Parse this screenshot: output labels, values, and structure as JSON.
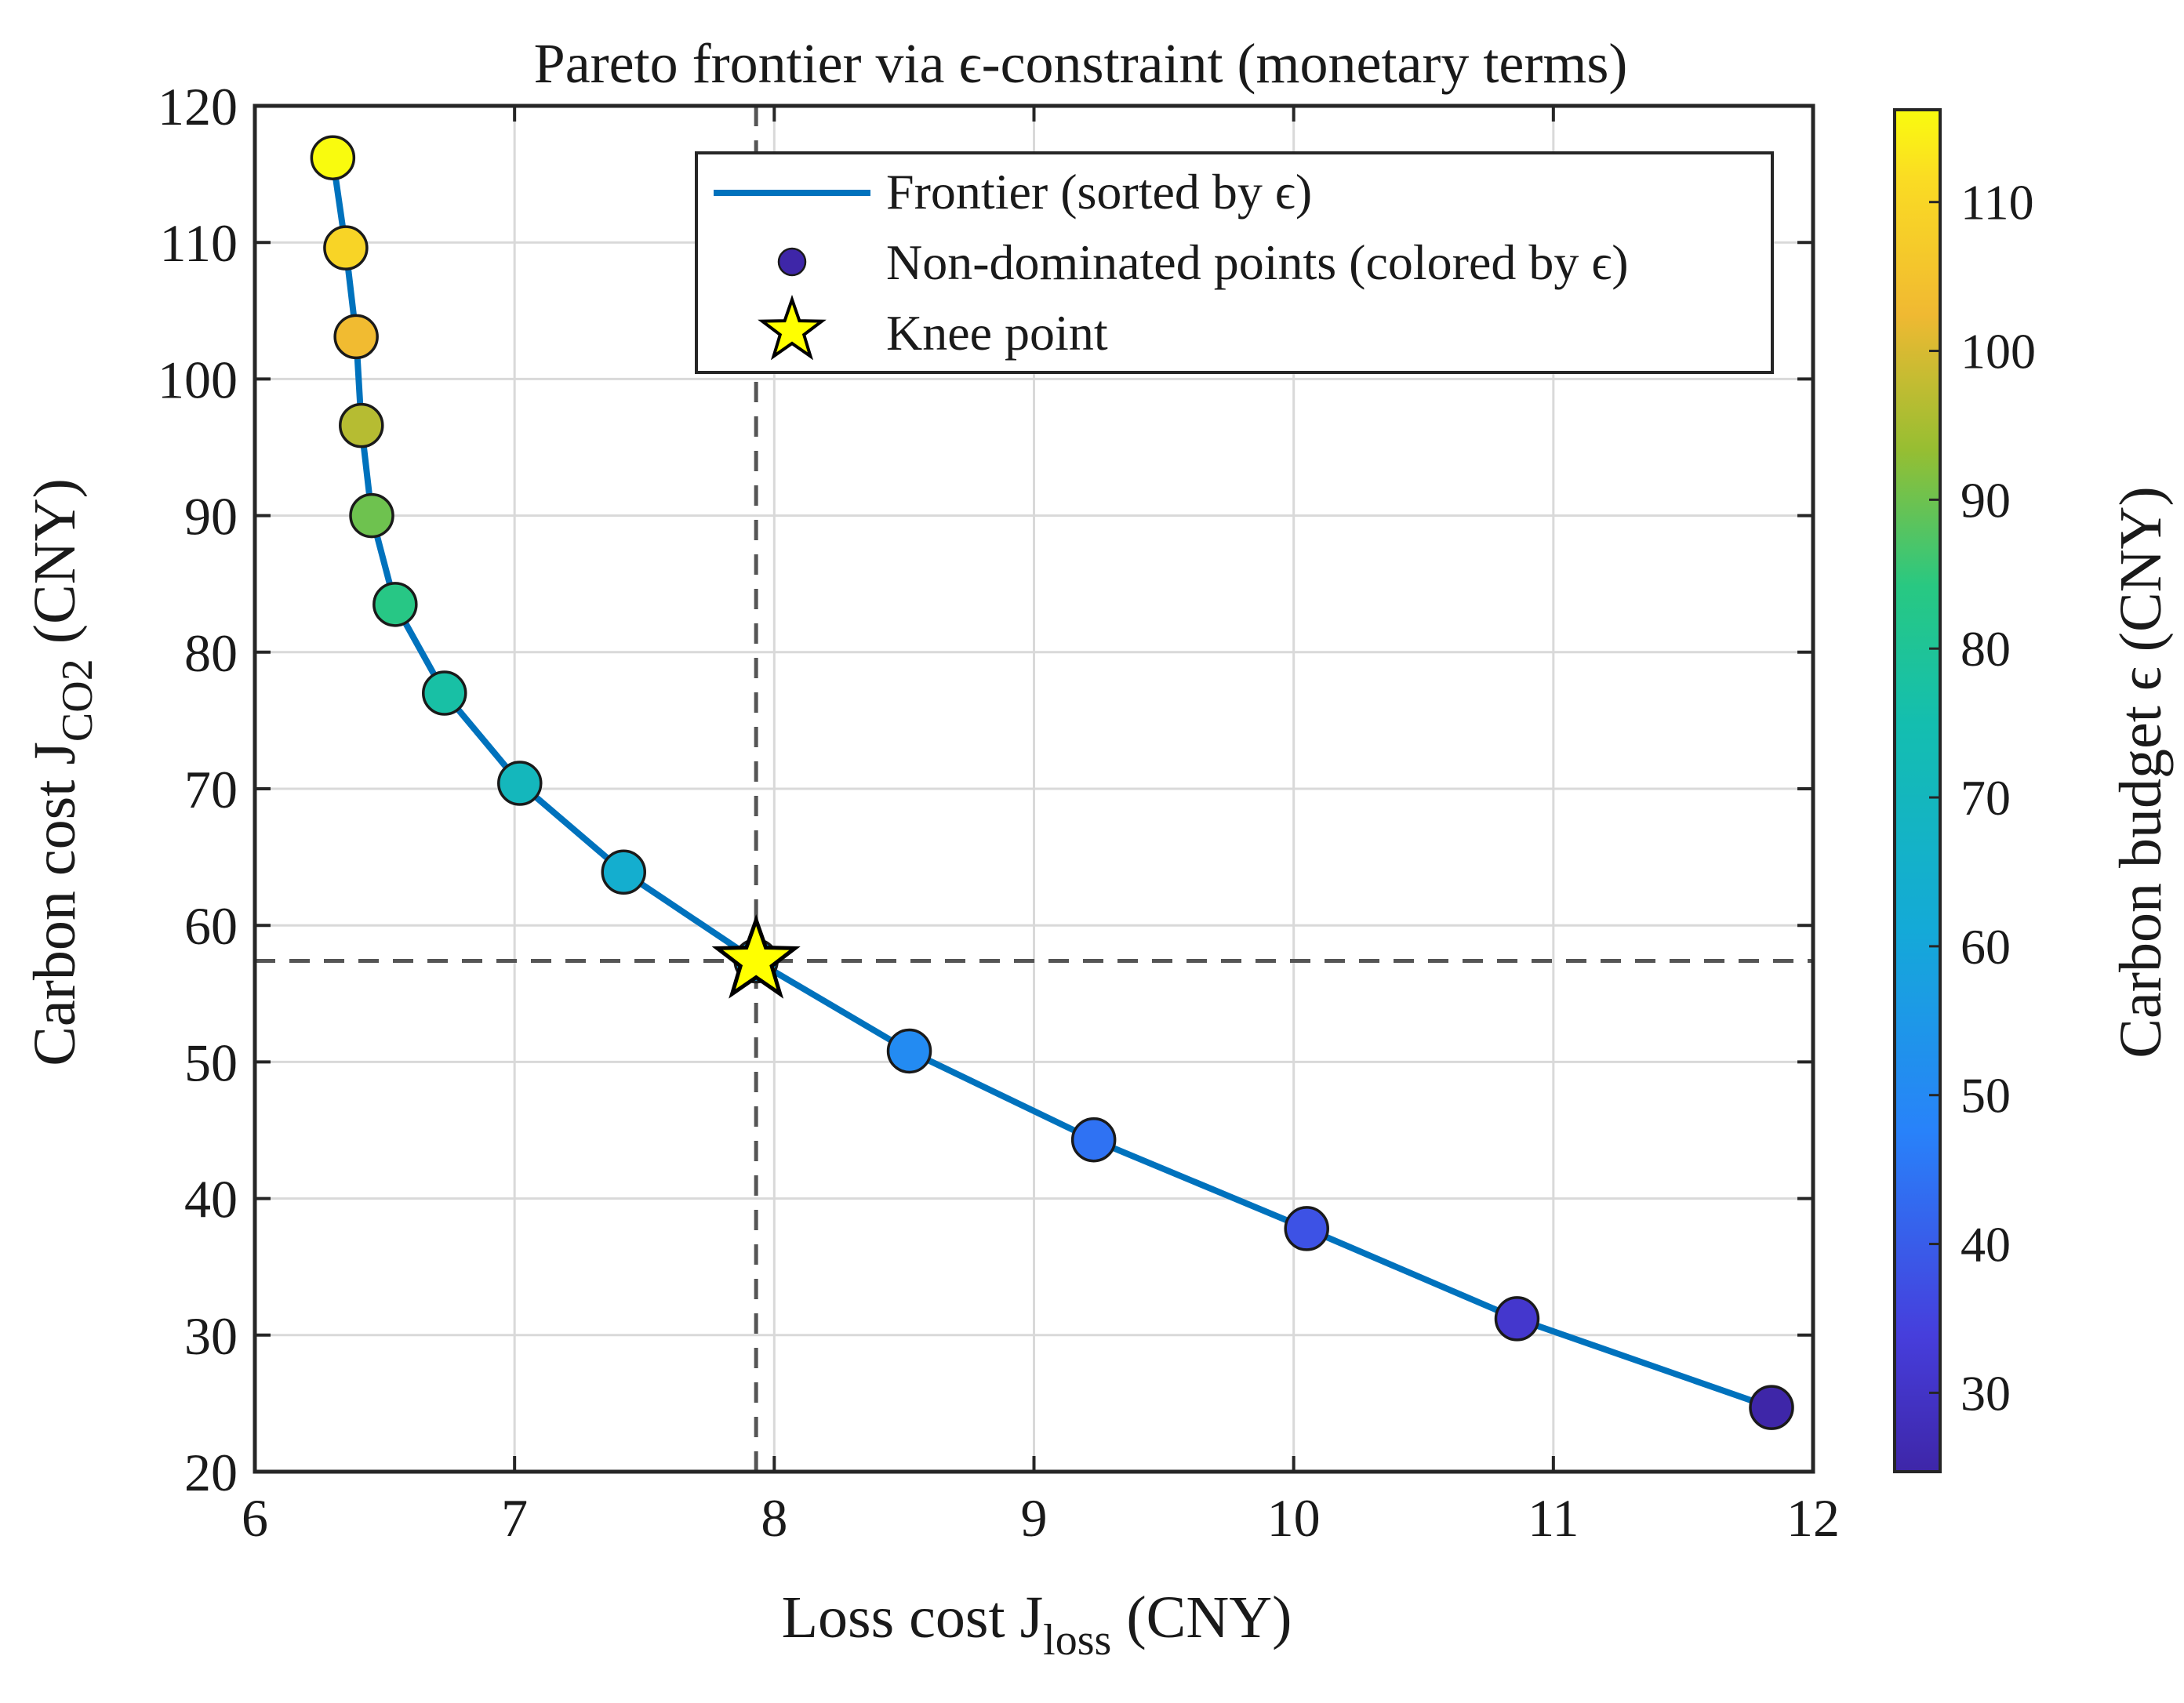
{
  "chart_data": {
    "type": "scatter",
    "title": "Pareto frontier via ϵ-constraint (monetary terms)",
    "xlabel": {
      "main": "Loss cost J",
      "sub": "loss",
      "unit": " (CNY)"
    },
    "ylabel": {
      "main": "Carbon cost J",
      "sub": "CO2",
      "unit": " (CNY)"
    },
    "xlim": [
      6,
      12
    ],
    "ylim": [
      20,
      120
    ],
    "xticks": [
      6,
      7,
      8,
      9,
      10,
      11,
      12
    ],
    "yticks": [
      20,
      30,
      40,
      50,
      60,
      70,
      80,
      90,
      100,
      110,
      120
    ],
    "grid": true,
    "series": [
      {
        "name": "Frontier (sorted by ϵ)",
        "kind": "line",
        "color": "#0072BD"
      },
      {
        "name": "Non-dominated points (colored by ϵ)",
        "kind": "scatter",
        "points": [
          {
            "x": 6.3,
            "y": 116.2,
            "epsilon": 116.2
          },
          {
            "x": 6.35,
            "y": 109.6,
            "epsilon": 109.6
          },
          {
            "x": 6.39,
            "y": 103.1,
            "epsilon": 103.1
          },
          {
            "x": 6.41,
            "y": 96.6,
            "epsilon": 96.6
          },
          {
            "x": 6.45,
            "y": 90.0,
            "epsilon": 90.0
          },
          {
            "x": 6.54,
            "y": 83.5,
            "epsilon": 83.5
          },
          {
            "x": 6.73,
            "y": 77.0,
            "epsilon": 77.0
          },
          {
            "x": 7.02,
            "y": 70.4,
            "epsilon": 70.4
          },
          {
            "x": 7.42,
            "y": 63.9,
            "epsilon": 63.9
          },
          {
            "x": 7.93,
            "y": 57.4,
            "epsilon": 57.4
          },
          {
            "x": 8.52,
            "y": 50.8,
            "epsilon": 50.8
          },
          {
            "x": 9.23,
            "y": 44.3,
            "epsilon": 44.3
          },
          {
            "x": 10.05,
            "y": 37.8,
            "epsilon": 37.8
          },
          {
            "x": 10.86,
            "y": 31.2,
            "epsilon": 31.2
          },
          {
            "x": 11.84,
            "y": 24.7,
            "epsilon": 24.7
          }
        ]
      },
      {
        "name": "Knee point",
        "kind": "marker",
        "marker": "star",
        "color": "#ffff00",
        "points": [
          {
            "x": 7.93,
            "y": 57.4
          }
        ]
      }
    ],
    "reference_lines": {
      "x": 7.93,
      "y": 57.4,
      "style": "dashed"
    },
    "legend": {
      "position": "top-right"
    },
    "colorbar": {
      "label": "Carbon budget ϵ (CNY)",
      "range": [
        24.7,
        116.2
      ],
      "ticks": [
        30,
        40,
        50,
        60,
        70,
        80,
        90,
        100,
        110
      ],
      "colormap": "parula"
    }
  },
  "colors": {
    "frontier_line": "#0072BD",
    "knee_star": "#ffff00",
    "legend_marker": "#3e26a8",
    "reference_line": "#555555",
    "grid": "#d9d9d9",
    "axes": "#262626"
  }
}
